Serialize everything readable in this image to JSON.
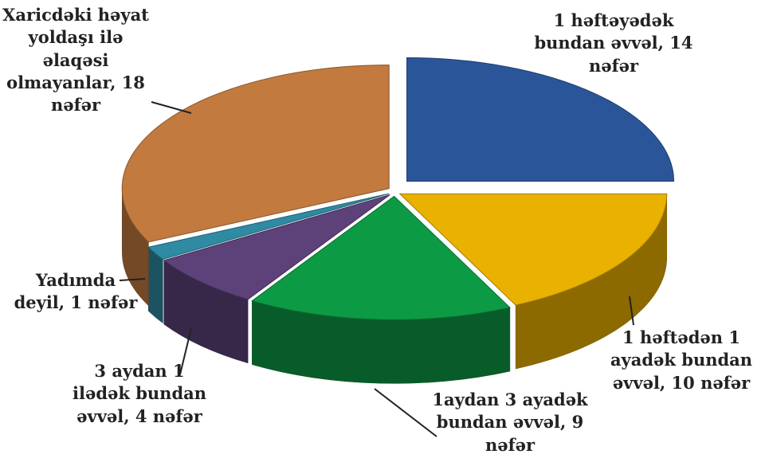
{
  "chart_data": {
    "type": "pie3d",
    "categories": [
      "1 həftəyədək bundan əvvəl, 14 nəfər",
      "1 həftədən 1 ayadək bundan əvvəl, 10 nəfər",
      "1aydan 3 ayadək bundan əvvəl, 9 nəfər",
      "3 aydan 1 ilədək bundan əvvəl, 4 nəfər",
      "Yadımda deyil, 1 nəfər",
      "Xaricdəki həyat yoldaşı ilə əlaqəsi olmayanlar, 18 nəfər"
    ],
    "values": [
      14,
      10,
      9,
      4,
      1,
      18
    ],
    "colors": [
      "#2a5699",
      "#e9b100",
      "#0d9a45",
      "#5c4279",
      "#2f8aa3",
      "#c27a3f"
    ]
  }
}
